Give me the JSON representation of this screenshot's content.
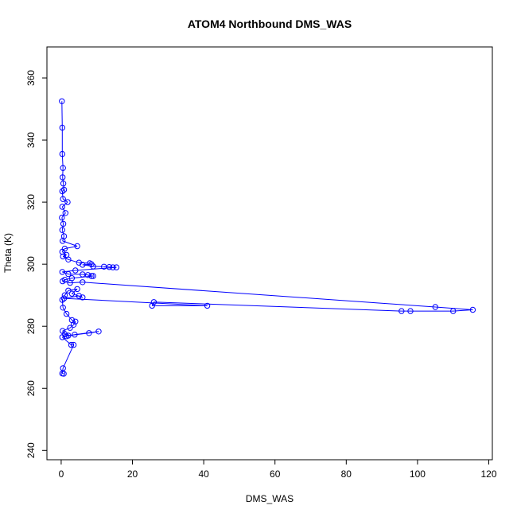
{
  "chart_data": {
    "type": "scatter",
    "title": "ATOM4 Northbound DMS_WAS",
    "xlabel": "DMS_WAS",
    "ylabel": "Theta (K)",
    "xlim": [
      -4,
      121
    ],
    "ylim": [
      237,
      370
    ],
    "xticks": [
      0,
      20,
      40,
      60,
      80,
      100,
      120
    ],
    "yticks": [
      240,
      260,
      280,
      300,
      320,
      340,
      360
    ],
    "grid": false,
    "legend": "none",
    "series": [
      {
        "color": "#0000ff",
        "marker": "open-circle",
        "connected": true,
        "points": [
          [
            0.2,
            352.5
          ],
          [
            0.3,
            344.0
          ],
          [
            0.3,
            335.5
          ],
          [
            0.5,
            331.0
          ],
          [
            0.4,
            328.0
          ],
          [
            0.6,
            326.0
          ],
          [
            0.8,
            324.0
          ],
          [
            0.3,
            323.5
          ],
          [
            0.5,
            321.0
          ],
          [
            1.8,
            320.0
          ],
          [
            0.3,
            318.5
          ],
          [
            1.2,
            316.5
          ],
          [
            0.2,
            315.0
          ],
          [
            0.6,
            313.0
          ],
          [
            0.3,
            311.0
          ],
          [
            0.8,
            309.0
          ],
          [
            0.4,
            307.5
          ],
          [
            4.5,
            305.8
          ],
          [
            1.0,
            305.0
          ],
          [
            0.3,
            304.0
          ],
          [
            1.5,
            303.0
          ],
          [
            0.5,
            302.5
          ],
          [
            2.0,
            301.5
          ],
          [
            5.0,
            300.5
          ],
          [
            8.0,
            300.3
          ],
          [
            8.5,
            300.0
          ],
          [
            6.0,
            299.8
          ],
          [
            9.0,
            299.3
          ],
          [
            12.0,
            299.2
          ],
          [
            13.5,
            299.1
          ],
          [
            14.5,
            299.0
          ],
          [
            15.5,
            299.0
          ],
          [
            4.0,
            298.0
          ],
          [
            0.3,
            297.5
          ],
          [
            2.0,
            296.8
          ],
          [
            6.0,
            296.7
          ],
          [
            7.5,
            296.5
          ],
          [
            8.5,
            296.2
          ],
          [
            9.0,
            296.2
          ],
          [
            3.0,
            295.5
          ],
          [
            1.0,
            295.0
          ],
          [
            0.4,
            294.5
          ],
          [
            2.5,
            294.0
          ],
          [
            6.0,
            294.2
          ],
          [
            105.0,
            286.2
          ],
          [
            115.5,
            285.3
          ],
          [
            110.0,
            284.9
          ],
          [
            98.0,
            284.9
          ],
          [
            95.5,
            284.9
          ],
          [
            26.0,
            287.8
          ],
          [
            25.5,
            286.6
          ],
          [
            41.0,
            286.6
          ],
          [
            0.8,
            289.0
          ],
          [
            5.0,
            289.8
          ],
          [
            6.0,
            289.3
          ],
          [
            3.0,
            290.5
          ],
          [
            4.5,
            292.0
          ],
          [
            2.0,
            291.5
          ],
          [
            1.0,
            290.0
          ],
          [
            0.3,
            288.5
          ],
          [
            0.5,
            286.0
          ],
          [
            1.5,
            284.0
          ],
          [
            3.0,
            282.0
          ],
          [
            4.0,
            281.5
          ],
          [
            3.5,
            280.5
          ],
          [
            2.5,
            279.5
          ],
          [
            0.4,
            278.5
          ],
          [
            1.0,
            277.5
          ],
          [
            2.0,
            277.0
          ],
          [
            7.8,
            277.8
          ],
          [
            10.5,
            278.3
          ],
          [
            3.8,
            277.3
          ],
          [
            1.5,
            276.8
          ],
          [
            0.3,
            276.5
          ],
          [
            2.8,
            274.0
          ],
          [
            3.5,
            274.0
          ],
          [
            0.5,
            266.5
          ],
          [
            0.3,
            264.8
          ],
          [
            0.7,
            264.7
          ]
        ]
      }
    ]
  }
}
